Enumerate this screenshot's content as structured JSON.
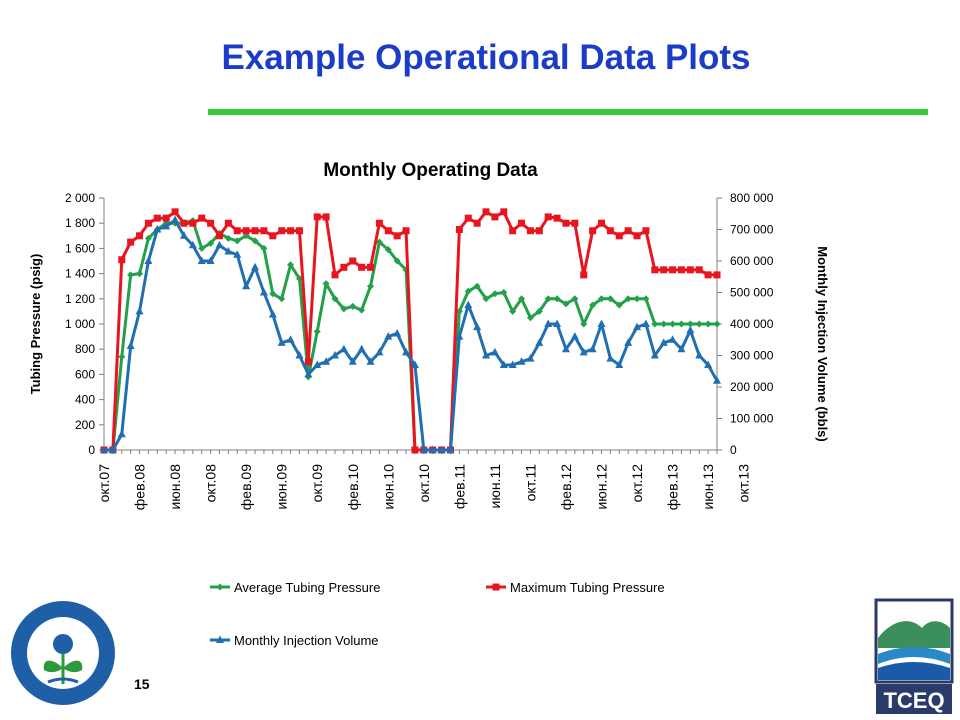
{
  "slide": {
    "title": "Example Operational Data Plots",
    "page_number": "15",
    "accent_color": "#33cc33",
    "title_color": "#1a3cc8"
  },
  "logos": {
    "left": {
      "icon": "epa-seal-icon",
      "text": "UNITED STATES ENVIRONMENTAL PROTECTION AGENCY"
    },
    "right": {
      "icon": "tceq-logo-icon",
      "text": "TCEQ"
    }
  },
  "chart_data": {
    "type": "line",
    "title": "Monthly Operating Data",
    "ylabel": "Tubing Pressure (psig)",
    "y2label": "Monthly Injection Volume (bbls)",
    "ylim": [
      0,
      2000
    ],
    "y2lim": [
      0,
      800000
    ],
    "yticks": [
      "0",
      "200",
      "400",
      "600",
      "800",
      "1 000",
      "1 200",
      "1 400",
      "1 600",
      "1 800",
      "2 000"
    ],
    "y2ticks": [
      "0",
      "100 000",
      "200 000",
      "300 000",
      "400 000",
      "500 000",
      "600 000",
      "700 000",
      "800 000"
    ],
    "x_tick_labels": [
      "окт.07",
      "фев.08",
      "июн.08",
      "окт.08",
      "фев.09",
      "июн.09",
      "окт.09",
      "фев.10",
      "июн.10",
      "окт.10",
      "фев.11",
      "июн.11",
      "окт.11",
      "фев.12",
      "июн.12",
      "окт.12",
      "фев.13",
      "июн.13",
      "окт.13"
    ],
    "x_tick_every": 4,
    "grid": false,
    "legend_position": "bottom",
    "series": [
      {
        "name": "Average Tubing Pressure",
        "axis": "left",
        "color": "#22a04a",
        "marker": "diamond",
        "values": [
          0,
          0,
          740,
          1390,
          1400,
          1680,
          1750,
          1800,
          1800,
          1800,
          1820,
          1600,
          1640,
          1720,
          1680,
          1660,
          1700,
          1660,
          1600,
          1240,
          1200,
          1470,
          1360,
          580,
          940,
          1320,
          1200,
          1120,
          1140,
          1110,
          1300,
          1650,
          1590,
          1500,
          1430,
          0,
          0,
          0,
          0,
          0,
          1100,
          1260,
          1300,
          1200,
          1240,
          1250,
          1100,
          1200,
          1050,
          1100,
          1200,
          1200,
          1160,
          1200,
          1000,
          1150,
          1200,
          1200,
          1150,
          1200,
          1200,
          1200,
          1000,
          1000,
          1000,
          1000,
          1000,
          1000,
          1000,
          1000
        ]
      },
      {
        "name": "Maximum Tubing Pressure",
        "axis": "left",
        "color": "#e8141e",
        "marker": "square",
        "values": [
          0,
          0,
          1510,
          1650,
          1700,
          1800,
          1840,
          1840,
          1890,
          1800,
          1800,
          1840,
          1800,
          1700,
          1800,
          1740,
          1740,
          1740,
          1740,
          1700,
          1740,
          1740,
          1740,
          700,
          1850,
          1850,
          1390,
          1450,
          1500,
          1450,
          1450,
          1800,
          1740,
          1700,
          1740,
          0,
          0,
          0,
          0,
          0,
          1750,
          1840,
          1800,
          1890,
          1850,
          1890,
          1740,
          1800,
          1740,
          1740,
          1850,
          1840,
          1800,
          1800,
          1390,
          1740,
          1800,
          1740,
          1700,
          1740,
          1700,
          1740,
          1430,
          1430,
          1430,
          1430,
          1430,
          1430,
          1390,
          1390
        ]
      },
      {
        "name": "Monthly Injection Volume",
        "axis": "right",
        "color": "#1f6fb2",
        "marker": "triangle",
        "values": [
          0,
          0,
          50000,
          330000,
          440000,
          600000,
          700000,
          710000,
          730000,
          680000,
          650000,
          600000,
          600000,
          650000,
          630000,
          620000,
          520000,
          580000,
          500000,
          430000,
          340000,
          350000,
          300000,
          240000,
          270000,
          280000,
          300000,
          320000,
          280000,
          320000,
          280000,
          310000,
          360000,
          370000,
          310000,
          270000,
          0,
          0,
          0,
          0,
          360000,
          460000,
          390000,
          300000,
          310000,
          270000,
          270000,
          280000,
          290000,
          340000,
          400000,
          400000,
          320000,
          360000,
          310000,
          320000,
          400000,
          290000,
          270000,
          340000,
          390000,
          400000,
          300000,
          340000,
          350000,
          320000,
          380000,
          300000,
          270000,
          220000
        ]
      }
    ]
  }
}
